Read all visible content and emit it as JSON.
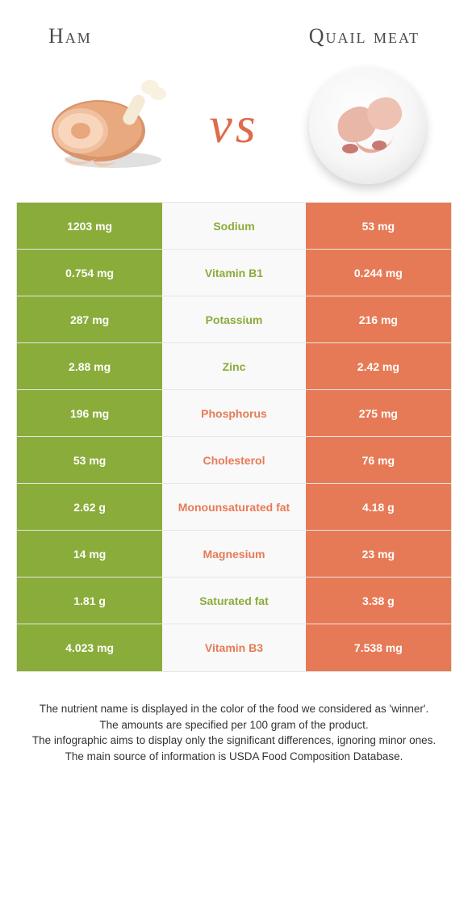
{
  "header": {
    "left_title": "Ham",
    "right_title": "Quail meat",
    "vs": "vs"
  },
  "colors": {
    "green": "#8aac3a",
    "orange": "#e77a56",
    "row_bg": "#f9f9f9",
    "border": "#e6e6e6",
    "vs_color": "#df6b4b"
  },
  "table": {
    "rows": [
      {
        "left": "1203 mg",
        "label": "Sodium",
        "right": "53 mg",
        "winner": "left"
      },
      {
        "left": "0.754 mg",
        "label": "Vitamin B1",
        "right": "0.244 mg",
        "winner": "left"
      },
      {
        "left": "287 mg",
        "label": "Potassium",
        "right": "216 mg",
        "winner": "left"
      },
      {
        "left": "2.88 mg",
        "label": "Zinc",
        "right": "2.42 mg",
        "winner": "left"
      },
      {
        "left": "196 mg",
        "label": "Phosphorus",
        "right": "275 mg",
        "winner": "right"
      },
      {
        "left": "53 mg",
        "label": "Cholesterol",
        "right": "76 mg",
        "winner": "right"
      },
      {
        "left": "2.62 g",
        "label": "Monounsaturated fat",
        "right": "4.18 g",
        "winner": "right"
      },
      {
        "left": "14 mg",
        "label": "Magnesium",
        "right": "23 mg",
        "winner": "right"
      },
      {
        "left": "1.81 g",
        "label": "Saturated fat",
        "right": "3.38 g",
        "winner": "left"
      },
      {
        "left": "4.023 mg",
        "label": "Vitamin B3",
        "right": "7.538 mg",
        "winner": "right"
      }
    ]
  },
  "footer": {
    "line1": "The nutrient name is displayed in the color of the food we considered as 'winner'.",
    "line2": "The amounts are specified per 100 gram of the product.",
    "line3": "The infographic aims to display only the significant differences, ignoring minor ones.",
    "line4": "The main source of information is USDA Food Composition Database."
  }
}
